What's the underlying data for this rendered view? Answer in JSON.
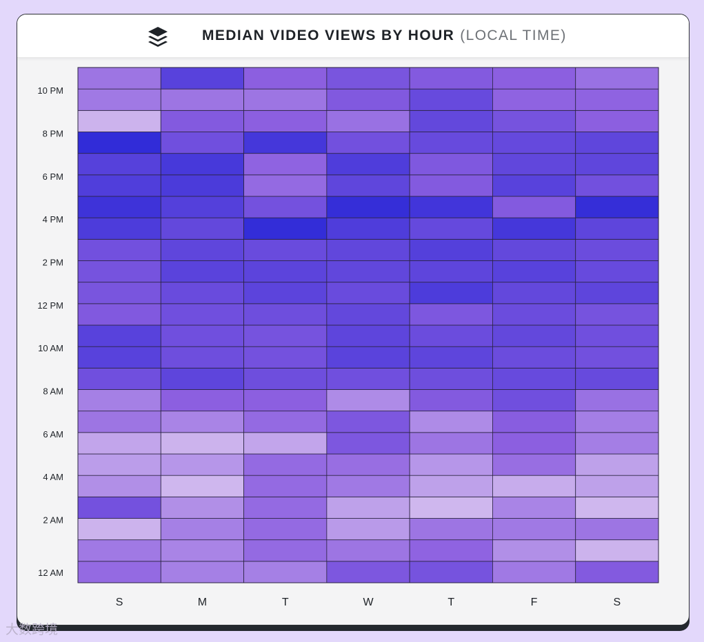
{
  "header": {
    "title": "MEDIAN VIDEO VIEWS BY HOUR",
    "subtitle": "(LOCAL TIME)",
    "logo_icon": "stacked-layers-icon"
  },
  "watermark": {
    "text": "大数跨境"
  },
  "colors": {
    "cell_light": "#e0cdf1",
    "cell_mid": "#8c5fe0",
    "cell_dark": "#2f2bd8",
    "page_background": "#e3d8fb"
  },
  "chart_data": {
    "type": "heatmap",
    "title": "MEDIAN VIDEO VIEWS BY HOUR (LOCAL TIME)",
    "x": [
      "S",
      "M",
      "T",
      "W",
      "T",
      "F",
      "S"
    ],
    "y_tick_labels": [
      "12 AM",
      "2 AM",
      "4 AM",
      "6 AM",
      "8 AM",
      "10 AM",
      "12 PM",
      "2 PM",
      "4 PM",
      "6 PM",
      "8 PM",
      "10 PM"
    ],
    "hours": [
      "12 AM",
      "1 AM",
      "2 AM",
      "3 AM",
      "4 AM",
      "5 AM",
      "6 AM",
      "7 AM",
      "8 AM",
      "9 AM",
      "10 AM",
      "11 AM",
      "12 PM",
      "1 PM",
      "2 PM",
      "3 PM",
      "4 PM",
      "5 PM",
      "6 PM",
      "7 PM",
      "8 PM",
      "9 PM",
      "10 PM",
      "11 PM"
    ],
    "value_scale": "relative intensity 0 (light) to 1 (dark)",
    "values": [
      [
        0.45,
        0.35,
        0.35,
        0.58,
        0.62,
        0.38,
        0.55
      ],
      [
        0.38,
        0.33,
        0.45,
        0.4,
        0.48,
        0.28,
        0.12
      ],
      [
        0.12,
        0.35,
        0.45,
        0.23,
        0.4,
        0.38,
        0.4
      ],
      [
        0.63,
        0.28,
        0.45,
        0.2,
        0.1,
        0.33,
        0.1
      ],
      [
        0.28,
        0.1,
        0.45,
        0.38,
        0.2,
        0.15,
        0.2
      ],
      [
        0.22,
        0.25,
        0.45,
        0.43,
        0.25,
        0.43,
        0.2
      ],
      [
        0.18,
        0.12,
        0.18,
        0.58,
        0.4,
        0.5,
        0.36
      ],
      [
        0.4,
        0.33,
        0.45,
        0.58,
        0.3,
        0.52,
        0.36
      ],
      [
        0.35,
        0.5,
        0.5,
        0.3,
        0.55,
        0.65,
        0.42
      ],
      [
        0.65,
        0.75,
        0.66,
        0.65,
        0.66,
        0.7,
        0.7
      ],
      [
        0.78,
        0.66,
        0.63,
        0.77,
        0.75,
        0.68,
        0.64
      ],
      [
        0.78,
        0.65,
        0.62,
        0.75,
        0.68,
        0.72,
        0.65
      ],
      [
        0.56,
        0.65,
        0.66,
        0.72,
        0.58,
        0.68,
        0.62
      ],
      [
        0.6,
        0.69,
        0.76,
        0.69,
        0.84,
        0.72,
        0.75
      ],
      [
        0.62,
        0.77,
        0.76,
        0.73,
        0.75,
        0.78,
        0.7
      ],
      [
        0.64,
        0.74,
        0.69,
        0.73,
        0.8,
        0.72,
        0.68
      ],
      [
        0.84,
        0.72,
        0.98,
        0.83,
        0.71,
        0.88,
        0.75
      ],
      [
        0.92,
        0.8,
        0.63,
        0.97,
        0.9,
        0.55,
        0.97
      ],
      [
        0.82,
        0.85,
        0.45,
        0.74,
        0.55,
        0.78,
        0.64
      ],
      [
        0.79,
        0.87,
        0.48,
        0.83,
        0.57,
        0.73,
        0.74
      ],
      [
        0.99,
        0.65,
        0.88,
        0.64,
        0.7,
        0.71,
        0.74
      ],
      [
        0.12,
        0.55,
        0.5,
        0.42,
        0.72,
        0.62,
        0.5
      ],
      [
        0.38,
        0.4,
        0.4,
        0.56,
        0.7,
        0.48,
        0.48
      ],
      [
        0.4,
        0.78,
        0.5,
        0.6,
        0.55,
        0.5,
        0.42
      ]
    ]
  }
}
